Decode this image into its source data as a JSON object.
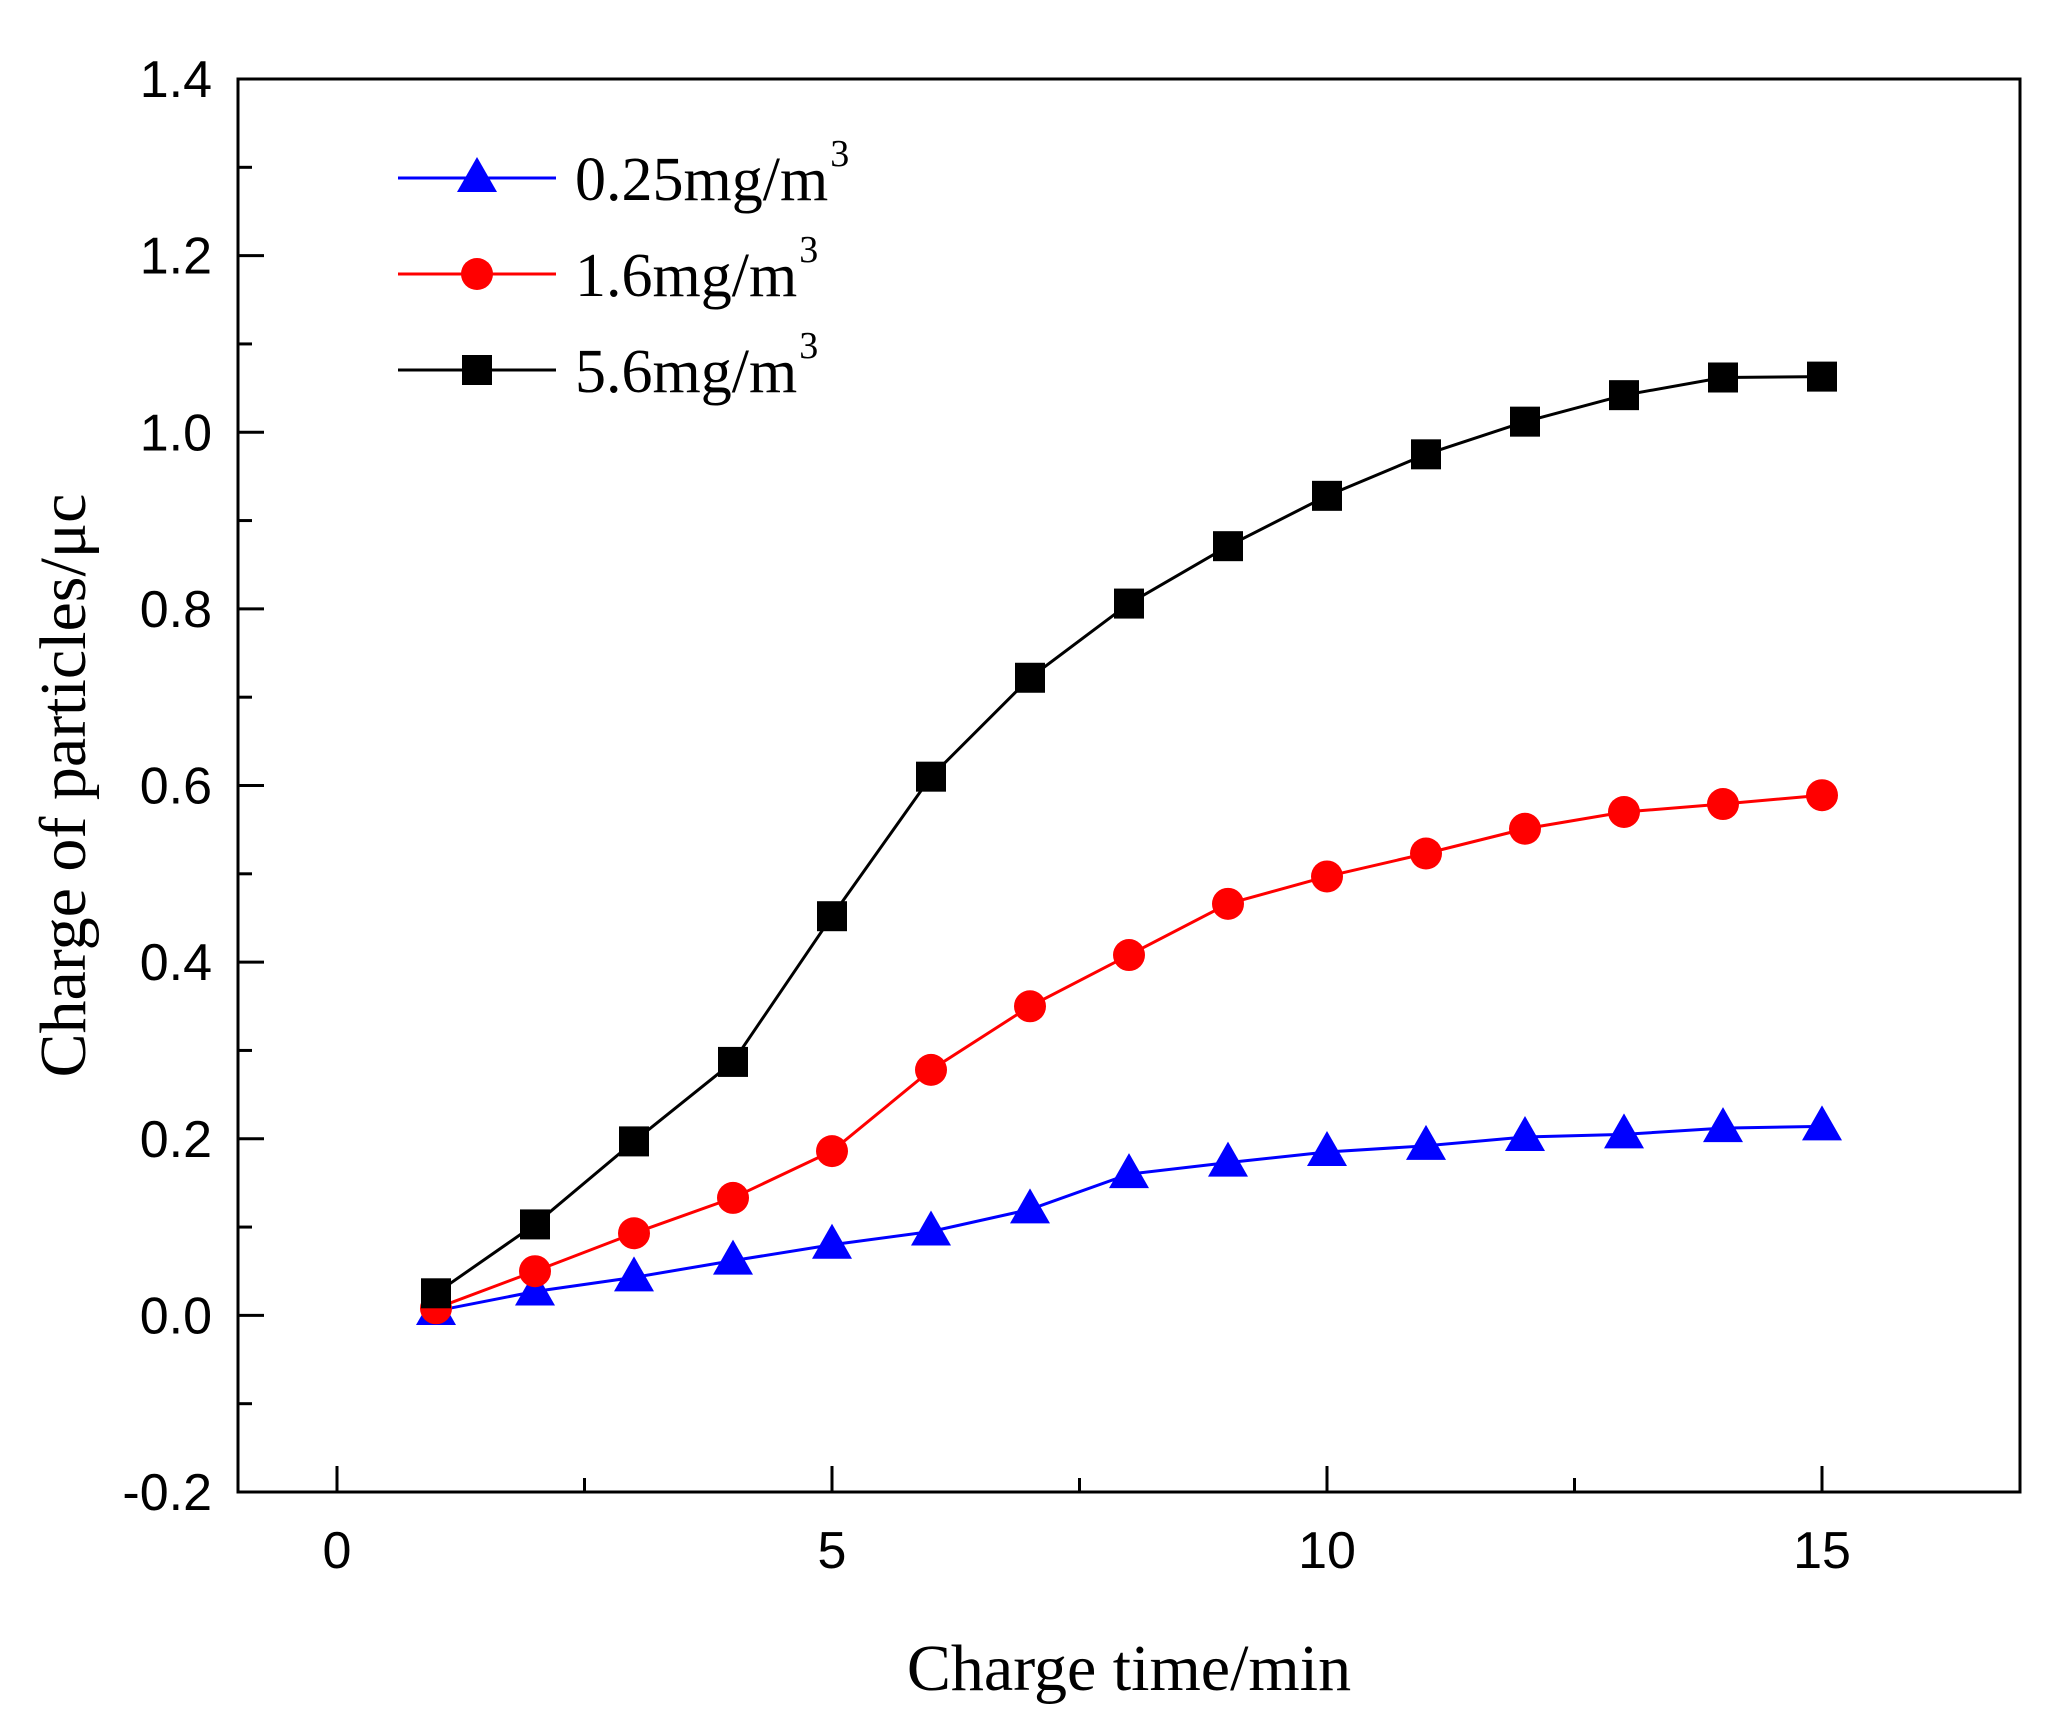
{
  "chart_data": {
    "type": "line",
    "title": "",
    "xlabel": "Charge time/min",
    "ylabel": "Charge of particles/μc",
    "xlim": [
      -1,
      17
    ],
    "ylim": [
      -0.2,
      1.4
    ],
    "xticks": [
      0,
      5,
      10,
      15
    ],
    "xtick_labels": [
      "0",
      "5",
      "10",
      "15"
    ],
    "yticks": [
      -0.2,
      0.0,
      0.2,
      0.4,
      0.6,
      0.8,
      1.0,
      1.2,
      1.4
    ],
    "ytick_labels": [
      "-0.2",
      "0.0",
      "0.2",
      "0.4",
      "0.6",
      "0.8",
      "1.0",
      "1.2",
      "1.4"
    ],
    "grid": false,
    "legend_position": "top-left",
    "x": [
      1,
      2,
      3,
      4,
      5,
      6,
      7,
      8,
      9,
      10,
      11,
      12,
      13,
      14,
      15
    ],
    "series": [
      {
        "name": "0.25mg/m",
        "name_sup": "3",
        "color": "#0000ff",
        "marker": "triangle",
        "values": [
          0.005,
          0.027,
          0.043,
          0.062,
          0.08,
          0.095,
          0.12,
          0.16,
          0.173,
          0.185,
          0.192,
          0.202,
          0.205,
          0.212,
          0.214
        ]
      },
      {
        "name": "1.6mg/m",
        "name_sup": "3",
        "color": "#ff0000",
        "marker": "circle",
        "values": [
          0.008,
          0.05,
          0.093,
          0.133,
          0.186,
          0.278,
          0.35,
          0.408,
          0.466,
          0.497,
          0.523,
          0.551,
          0.57,
          0.579,
          0.589
        ]
      },
      {
        "name": "5.6mg/m",
        "name_sup": "3",
        "color": "#000000",
        "marker": "square",
        "values": [
          0.025,
          0.103,
          0.197,
          0.287,
          0.452,
          0.61,
          0.722,
          0.806,
          0.871,
          0.928,
          0.975,
          1.012,
          1.042,
          1.062,
          1.063
        ]
      }
    ]
  }
}
